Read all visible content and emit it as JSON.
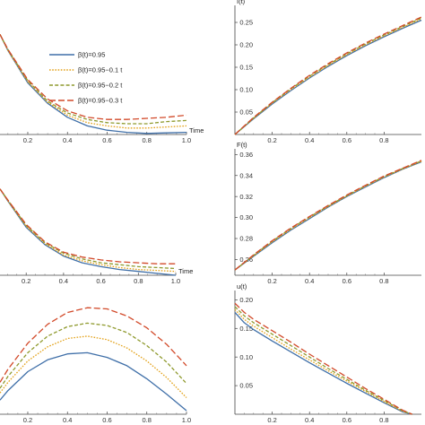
{
  "legend": {
    "placement": "top-left-panel",
    "entries": [
      {
        "label": "β(t)=0.95",
        "color": "#3f6fa8",
        "dash": "solid"
      },
      {
        "label": "β(t)=0.95−0.1 t",
        "color": "#e3a21a",
        "dash": "dotted"
      },
      {
        "label": "β(t)=0.95−0.2 t",
        "color": "#8f9a2e",
        "dash": "dashed"
      },
      {
        "label": "β(t)=0.95−0.3 t",
        "color": "#d24a2a",
        "dash": "longdash"
      }
    ]
  },
  "chart_data": [
    {
      "id": "p1",
      "type": "line",
      "title": "",
      "xlabel": "Time",
      "ylabel": "",
      "xlim": [
        0.06,
        1.0
      ],
      "ylim": [
        0.0,
        1.0
      ],
      "xticks": [
        "0.2",
        "0.4",
        "0.6",
        "0.8",
        "1.0"
      ],
      "yticks": [],
      "grid": false,
      "series": [
        {
          "x": [
            0.06,
            0.1,
            0.2,
            0.3,
            0.4,
            0.5,
            0.6,
            0.7,
            0.8,
            0.9,
            1.0
          ],
          "y": [
            0.93,
            0.78,
            0.48,
            0.29,
            0.16,
            0.08,
            0.04,
            0.02,
            0.01,
            0.015,
            0.02
          ]
        },
        {
          "x": [
            0.06,
            0.1,
            0.2,
            0.3,
            0.4,
            0.5,
            0.6,
            0.7,
            0.8,
            0.9,
            1.0
          ],
          "y": [
            0.93,
            0.78,
            0.49,
            0.3,
            0.18,
            0.11,
            0.08,
            0.06,
            0.06,
            0.07,
            0.08
          ]
        },
        {
          "x": [
            0.06,
            0.1,
            0.2,
            0.3,
            0.4,
            0.5,
            0.6,
            0.7,
            0.8,
            0.9,
            1.0
          ],
          "y": [
            0.93,
            0.79,
            0.5,
            0.31,
            0.2,
            0.14,
            0.11,
            0.1,
            0.1,
            0.12,
            0.13
          ]
        },
        {
          "x": [
            0.06,
            0.1,
            0.2,
            0.3,
            0.4,
            0.5,
            0.6,
            0.7,
            0.8,
            0.9,
            1.0
          ],
          "y": [
            0.93,
            0.79,
            0.51,
            0.33,
            0.22,
            0.16,
            0.14,
            0.14,
            0.15,
            0.16,
            0.18
          ]
        }
      ]
    },
    {
      "id": "p2",
      "type": "line",
      "title": "",
      "xlabel": "",
      "ylabel": "I(t)",
      "xlim": [
        0.0,
        1.0
      ],
      "ylim": [
        0.0,
        0.28
      ],
      "xticks": [
        "0.2",
        "0.4",
        "0.6",
        "0.8"
      ],
      "yticks": [
        "0.05",
        "0.10",
        "0.15",
        "0.20",
        "0.25"
      ],
      "grid": false,
      "series": [
        {
          "x": [
            0,
            0.1,
            0.2,
            0.3,
            0.4,
            0.5,
            0.6,
            0.7,
            0.8,
            0.9,
            1.0
          ],
          "y": [
            0.0,
            0.035,
            0.068,
            0.098,
            0.126,
            0.152,
            0.176,
            0.198,
            0.218,
            0.237,
            0.255
          ]
        },
        {
          "x": [
            0,
            0.1,
            0.2,
            0.3,
            0.4,
            0.5,
            0.6,
            0.7,
            0.8,
            0.9,
            1.0
          ],
          "y": [
            0.0,
            0.036,
            0.07,
            0.1,
            0.128,
            0.154,
            0.178,
            0.2,
            0.22,
            0.239,
            0.258
          ]
        },
        {
          "x": [
            0,
            0.1,
            0.2,
            0.3,
            0.4,
            0.5,
            0.6,
            0.7,
            0.8,
            0.9,
            1.0
          ],
          "y": [
            0.0,
            0.037,
            0.071,
            0.102,
            0.13,
            0.156,
            0.18,
            0.202,
            0.222,
            0.241,
            0.26
          ]
        },
        {
          "x": [
            0,
            0.1,
            0.2,
            0.3,
            0.4,
            0.5,
            0.6,
            0.7,
            0.8,
            0.9,
            1.0
          ],
          "y": [
            0.0,
            0.038,
            0.072,
            0.103,
            0.132,
            0.158,
            0.182,
            0.204,
            0.224,
            0.243,
            0.262
          ]
        }
      ]
    },
    {
      "id": "p3",
      "type": "line",
      "title": "",
      "xlabel": "Time",
      "ylabel": "",
      "xlim": [
        0.06,
        1.0
      ],
      "ylim": [
        0.0,
        1.0
      ],
      "xticks": [
        "0.2",
        "0.4",
        "0.6",
        "0.8",
        "1.0"
      ],
      "yticks": [],
      "grid": false,
      "series": [
        {
          "x": [
            0.06,
            0.1,
            0.2,
            0.3,
            0.4,
            0.5,
            0.6,
            0.7,
            0.8,
            0.9,
            1.0
          ],
          "y": [
            0.9,
            0.78,
            0.5,
            0.32,
            0.2,
            0.13,
            0.09,
            0.06,
            0.04,
            0.02,
            0.0
          ]
        },
        {
          "x": [
            0.06,
            0.1,
            0.2,
            0.3,
            0.4,
            0.5,
            0.6,
            0.7,
            0.8,
            0.9,
            1.0
          ],
          "y": [
            0.9,
            0.78,
            0.51,
            0.33,
            0.21,
            0.15,
            0.11,
            0.08,
            0.06,
            0.05,
            0.04
          ]
        },
        {
          "x": [
            0.06,
            0.1,
            0.2,
            0.3,
            0.4,
            0.5,
            0.6,
            0.7,
            0.8,
            0.9,
            1.0
          ],
          "y": [
            0.9,
            0.79,
            0.52,
            0.34,
            0.23,
            0.17,
            0.13,
            0.11,
            0.09,
            0.08,
            0.07
          ]
        },
        {
          "x": [
            0.06,
            0.1,
            0.2,
            0.3,
            0.4,
            0.5,
            0.6,
            0.7,
            0.8,
            0.9,
            1.0
          ],
          "y": [
            0.9,
            0.79,
            0.53,
            0.35,
            0.24,
            0.19,
            0.16,
            0.14,
            0.13,
            0.12,
            0.12
          ]
        }
      ]
    },
    {
      "id": "p4",
      "type": "line",
      "title": "",
      "xlabel": "",
      "ylabel": "F(t)",
      "xlim": [
        0.0,
        1.0
      ],
      "ylim": [
        0.245,
        0.362
      ],
      "xticks": [
        "0.2",
        "0.4",
        "0.6",
        "0.8"
      ],
      "yticks": [
        "0.26",
        "0.28",
        "0.30",
        "0.32",
        "0.34",
        "0.36"
      ],
      "grid": false,
      "series": [
        {
          "x": [
            0,
            0.1,
            0.2,
            0.3,
            0.4,
            0.5,
            0.6,
            0.7,
            0.8,
            0.9,
            1.0
          ],
          "y": [
            0.25,
            0.263,
            0.276,
            0.288,
            0.299,
            0.31,
            0.32,
            0.329,
            0.338,
            0.346,
            0.353
          ]
        },
        {
          "x": [
            0,
            0.1,
            0.2,
            0.3,
            0.4,
            0.5,
            0.6,
            0.7,
            0.8,
            0.9,
            1.0
          ],
          "y": [
            0.25,
            0.2635,
            0.2768,
            0.2887,
            0.2998,
            0.3105,
            0.3205,
            0.3297,
            0.3385,
            0.3463,
            0.3535
          ]
        },
        {
          "x": [
            0,
            0.1,
            0.2,
            0.3,
            0.4,
            0.5,
            0.6,
            0.7,
            0.8,
            0.9,
            1.0
          ],
          "y": [
            0.25,
            0.264,
            0.2775,
            0.2895,
            0.3005,
            0.311,
            0.321,
            0.3302,
            0.339,
            0.3467,
            0.354
          ]
        },
        {
          "x": [
            0,
            0.1,
            0.2,
            0.3,
            0.4,
            0.5,
            0.6,
            0.7,
            0.8,
            0.9,
            1.0
          ],
          "y": [
            0.25,
            0.2645,
            0.278,
            0.29,
            0.301,
            0.3115,
            0.3215,
            0.3307,
            0.3395,
            0.347,
            0.3545
          ]
        }
      ]
    },
    {
      "id": "p5",
      "type": "line",
      "title": "",
      "xlabel": "",
      "ylabel": "",
      "xlim": [
        0.06,
        1.0
      ],
      "ylim": [
        0.0,
        1.0
      ],
      "xticks": [
        "0.2",
        "0.4",
        "0.6",
        "0.8",
        "1.0"
      ],
      "yticks": [],
      "grid": false,
      "series": [
        {
          "x": [
            0.06,
            0.1,
            0.2,
            0.3,
            0.4,
            0.5,
            0.6,
            0.7,
            0.8,
            0.9,
            1.0
          ],
          "y": [
            0.12,
            0.2,
            0.36,
            0.46,
            0.51,
            0.52,
            0.48,
            0.41,
            0.3,
            0.17,
            0.03
          ]
        },
        {
          "x": [
            0.06,
            0.1,
            0.2,
            0.3,
            0.4,
            0.5,
            0.6,
            0.7,
            0.8,
            0.9,
            1.0
          ],
          "y": [
            0.18,
            0.27,
            0.45,
            0.57,
            0.64,
            0.66,
            0.63,
            0.56,
            0.45,
            0.31,
            0.14
          ]
        },
        {
          "x": [
            0.06,
            0.1,
            0.2,
            0.3,
            0.4,
            0.5,
            0.6,
            0.7,
            0.8,
            0.9,
            1.0
          ],
          "y": [
            0.22,
            0.32,
            0.52,
            0.66,
            0.74,
            0.77,
            0.75,
            0.69,
            0.58,
            0.44,
            0.26
          ]
        },
        {
          "x": [
            0.06,
            0.1,
            0.2,
            0.3,
            0.4,
            0.5,
            0.6,
            0.7,
            0.8,
            0.9,
            1.0
          ],
          "y": [
            0.27,
            0.38,
            0.6,
            0.76,
            0.86,
            0.9,
            0.89,
            0.83,
            0.73,
            0.59,
            0.41
          ]
        }
      ]
    },
    {
      "id": "p6",
      "type": "line",
      "title": "",
      "xlabel": "",
      "ylabel": "u(t)",
      "xlim": [
        0.0,
        1.0
      ],
      "ylim": [
        0.0,
        0.21
      ],
      "xticks": [
        "0.2",
        "0.4",
        "0.6",
        "0.8"
      ],
      "yticks": [
        "0.05",
        "0.10",
        "0.15",
        "0.20"
      ],
      "grid": false,
      "series": [
        {
          "x": [
            0,
            0.05,
            0.1,
            0.2,
            0.3,
            0.4,
            0.5,
            0.6,
            0.7,
            0.8,
            0.9,
            0.95
          ],
          "y": [
            0.178,
            0.16,
            0.148,
            0.128,
            0.109,
            0.09,
            0.072,
            0.054,
            0.037,
            0.02,
            0.004,
            0.0
          ]
        },
        {
          "x": [
            0,
            0.05,
            0.1,
            0.2,
            0.3,
            0.4,
            0.5,
            0.6,
            0.7,
            0.8,
            0.9,
            0.95
          ],
          "y": [
            0.183,
            0.166,
            0.154,
            0.134,
            0.114,
            0.095,
            0.076,
            0.058,
            0.04,
            0.022,
            0.005,
            0.0
          ]
        },
        {
          "x": [
            0,
            0.05,
            0.1,
            0.2,
            0.3,
            0.4,
            0.5,
            0.6,
            0.7,
            0.8,
            0.9,
            0.95
          ],
          "y": [
            0.188,
            0.172,
            0.16,
            0.14,
            0.12,
            0.1,
            0.08,
            0.061,
            0.042,
            0.024,
            0.006,
            0.0
          ]
        },
        {
          "x": [
            0,
            0.05,
            0.1,
            0.2,
            0.3,
            0.4,
            0.5,
            0.6,
            0.7,
            0.8,
            0.9,
            0.95
          ],
          "y": [
            0.194,
            0.178,
            0.166,
            0.146,
            0.126,
            0.105,
            0.085,
            0.065,
            0.045,
            0.026,
            0.007,
            0.0
          ]
        }
      ]
    }
  ]
}
